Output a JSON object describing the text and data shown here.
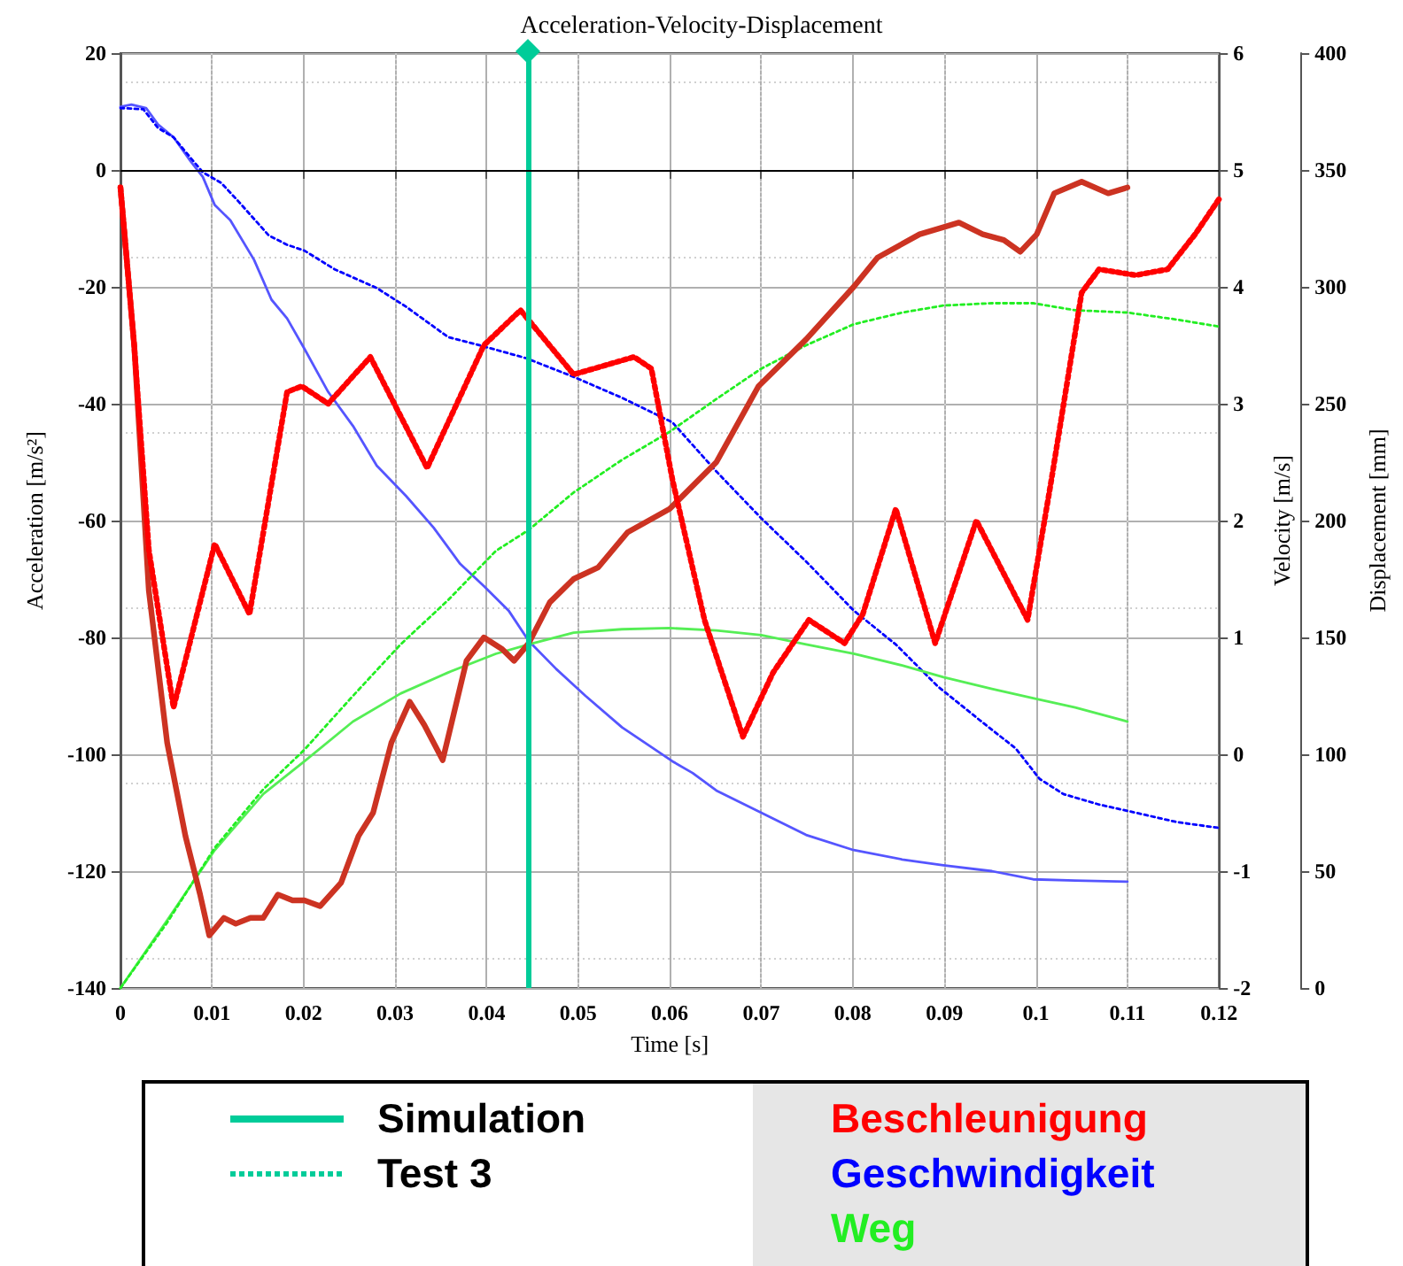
{
  "chart_data": {
    "type": "line",
    "title": "Acceleration-Velocity-Displacement",
    "xlabel": "Time [s]",
    "ylabel": "Acceleration [m/s²]",
    "y2label": "Velocity [m/s]",
    "y3label": "Displacement [mm]",
    "xlim": [
      0,
      0.12
    ],
    "xticks": [
      0,
      0.01,
      0.02,
      0.03,
      0.04,
      0.05,
      0.06,
      0.07,
      0.08,
      0.09,
      0.1,
      0.11,
      0.12
    ],
    "ylim": [
      -140,
      20
    ],
    "yticks": [
      -140,
      -120,
      -100,
      -80,
      -60,
      -40,
      -20,
      0,
      20
    ],
    "y2lim": [
      -2,
      6
    ],
    "y2ticks": [
      -2,
      -1,
      0,
      1,
      2,
      3,
      4,
      5,
      6
    ],
    "y3lim": [
      0,
      400
    ],
    "y3ticks": [
      0,
      50,
      100,
      150,
      200,
      250,
      300,
      350,
      400
    ],
    "grid": true,
    "marker": "none",
    "ref_lines": [
      {
        "axis": "x",
        "value": 0.0446,
        "color": "#00cc99",
        "line_style": "solid"
      },
      {
        "axis": "y",
        "value": 0,
        "color": "#000000",
        "line_style": "solid"
      }
    ],
    "annotations": [
      "Simulation",
      "Test 3",
      "Beschleunigung",
      "Geschwindigkeit",
      "Weg"
    ],
    "series": [
      {
        "color": "#cc3322",
        "line_style": "solid",
        "axis": "y",
        "x": [
          0,
          0.0015,
          0.0031,
          0.0051,
          0.0071,
          0.0087,
          0.0097,
          0.0113,
          0.0126,
          0.0142,
          0.0156,
          0.0172,
          0.0188,
          0.0201,
          0.0218,
          0.0241,
          0.026,
          0.0276,
          0.0296,
          0.0316,
          0.0332,
          0.0352,
          0.0378,
          0.0397,
          0.0417,
          0.043,
          0.0446,
          0.0469,
          0.0495,
          0.0522,
          0.0554,
          0.06,
          0.0651,
          0.0697,
          0.0749,
          0.0801,
          0.0827,
          0.0873,
          0.0916,
          0.0942,
          0.0965,
          0.0983,
          0.1001,
          0.102,
          0.105,
          0.1079,
          0.11
        ],
        "values": [
          -3,
          -30,
          -72,
          -98,
          -114,
          -124,
          -131,
          -128,
          -129,
          -128,
          -128,
          -124,
          -125,
          -125,
          -126,
          -122,
          -114,
          -110,
          -98,
          -91,
          -95,
          -101,
          -84,
          -80,
          -82,
          -84,
          -81,
          -74,
          -70,
          -68,
          -62,
          -58,
          -50,
          -37,
          -29,
          -20,
          -15,
          -11,
          -9,
          -11,
          -12,
          -14,
          -11,
          -4,
          -2,
          -4,
          -3
        ]
      },
      {
        "color": "#ff0000",
        "line_style": "dotted",
        "axis": "y",
        "x": [
          0,
          0.0015,
          0.0031,
          0.0058,
          0.0103,
          0.0141,
          0.0182,
          0.0198,
          0.0227,
          0.0273,
          0.0335,
          0.0397,
          0.0437,
          0.0495,
          0.0561,
          0.058,
          0.0603,
          0.0638,
          0.068,
          0.0713,
          0.0752,
          0.0791,
          0.0811,
          0.0847,
          0.089,
          0.0935,
          0.0991,
          0.1017,
          0.105,
          0.1069,
          0.1109,
          0.1144,
          0.1174,
          0.12
        ],
        "values": [
          -3,
          -30,
          -65,
          -92,
          -64,
          -76,
          -38,
          -37,
          -40,
          -32,
          -51,
          -30,
          -24,
          -35,
          -32,
          -34,
          -53,
          -77,
          -97,
          -86,
          -77,
          -81,
          -76,
          -58,
          -81,
          -60,
          -77,
          -53,
          -21,
          -17,
          -18,
          -17,
          -11,
          -5
        ]
      },
      {
        "color": "#5555ff",
        "line_style": "solid",
        "axis": "y2",
        "x": [
          0,
          0.0012,
          0.0028,
          0.0041,
          0.0058,
          0.0077,
          0.009,
          0.0103,
          0.012,
          0.0146,
          0.0165,
          0.0182,
          0.0201,
          0.0227,
          0.0254,
          0.028,
          0.0312,
          0.0342,
          0.0371,
          0.0397,
          0.0424,
          0.0446,
          0.0476,
          0.0508,
          0.0548,
          0.0603,
          0.0625,
          0.0651,
          0.07,
          0.0749,
          0.0801,
          0.0854,
          0.0899,
          0.0952,
          0.0997,
          0.1043,
          0.11
        ],
        "values": [
          5.54,
          5.56,
          5.53,
          5.39,
          5.28,
          5.07,
          4.94,
          4.7,
          4.57,
          4.23,
          3.89,
          3.73,
          3.47,
          3.1,
          2.81,
          2.47,
          2.21,
          1.94,
          1.63,
          1.44,
          1.23,
          0.97,
          0.73,
          0.5,
          0.23,
          -0.06,
          -0.16,
          -0.31,
          -0.5,
          -0.69,
          -0.82,
          -0.9,
          -0.95,
          -1.0,
          -1.07,
          -1.08,
          -1.09
        ]
      },
      {
        "color": "#0000ff",
        "line_style": "dotted",
        "axis": "y2",
        "x": [
          0,
          0.0025,
          0.0041,
          0.0058,
          0.0077,
          0.009,
          0.011,
          0.0129,
          0.0162,
          0.0182,
          0.0201,
          0.0234,
          0.028,
          0.0312,
          0.0358,
          0.0397,
          0.0443,
          0.0495,
          0.0548,
          0.0603,
          0.0651,
          0.07,
          0.0749,
          0.0801,
          0.0847,
          0.0893,
          0.0939,
          0.0978,
          0.1004,
          0.103,
          0.1069,
          0.1109,
          0.1154,
          0.12
        ],
        "values": [
          5.53,
          5.52,
          5.36,
          5.28,
          5.1,
          4.98,
          4.89,
          4.73,
          4.44,
          4.36,
          4.31,
          4.15,
          3.99,
          3.83,
          3.57,
          3.49,
          3.39,
          3.23,
          3.05,
          2.84,
          2.42,
          2.02,
          1.65,
          1.23,
          0.94,
          0.58,
          0.29,
          0.05,
          -0.21,
          -0.34,
          -0.43,
          -0.5,
          -0.58,
          -0.63
        ]
      },
      {
        "color": "#55ee55",
        "line_style": "solid",
        "axis": "y3",
        "x": [
          0,
          0.0051,
          0.0103,
          0.0156,
          0.0201,
          0.0254,
          0.0306,
          0.0358,
          0.041,
          0.0446,
          0.0495,
          0.0548,
          0.06,
          0.0651,
          0.07,
          0.0749,
          0.0801,
          0.0854,
          0.0899,
          0.0952,
          0.0997,
          0.1043,
          0.11
        ],
        "values": [
          0,
          29,
          59,
          83,
          97,
          114,
          126,
          135,
          143,
          147,
          152,
          153.5,
          154,
          153,
          151,
          147,
          143,
          138,
          133,
          128,
          124,
          120,
          114
        ]
      },
      {
        "color": "#22ee22",
        "line_style": "dotted",
        "axis": "y3",
        "x": [
          0,
          0.0051,
          0.0103,
          0.0156,
          0.0201,
          0.0254,
          0.0306,
          0.0358,
          0.041,
          0.0446,
          0.0495,
          0.0548,
          0.06,
          0.0651,
          0.07,
          0.0749,
          0.0801,
          0.0854,
          0.0899,
          0.0952,
          0.0997,
          0.1043,
          0.11,
          0.1154,
          0.12
        ],
        "values": [
          0,
          28,
          60,
          85,
          102,
          125,
          147,
          166,
          187,
          196,
          212,
          226,
          238,
          252,
          265,
          275,
          284,
          289,
          292,
          293,
          293,
          290,
          289,
          286,
          283
        ]
      }
    ]
  }
}
